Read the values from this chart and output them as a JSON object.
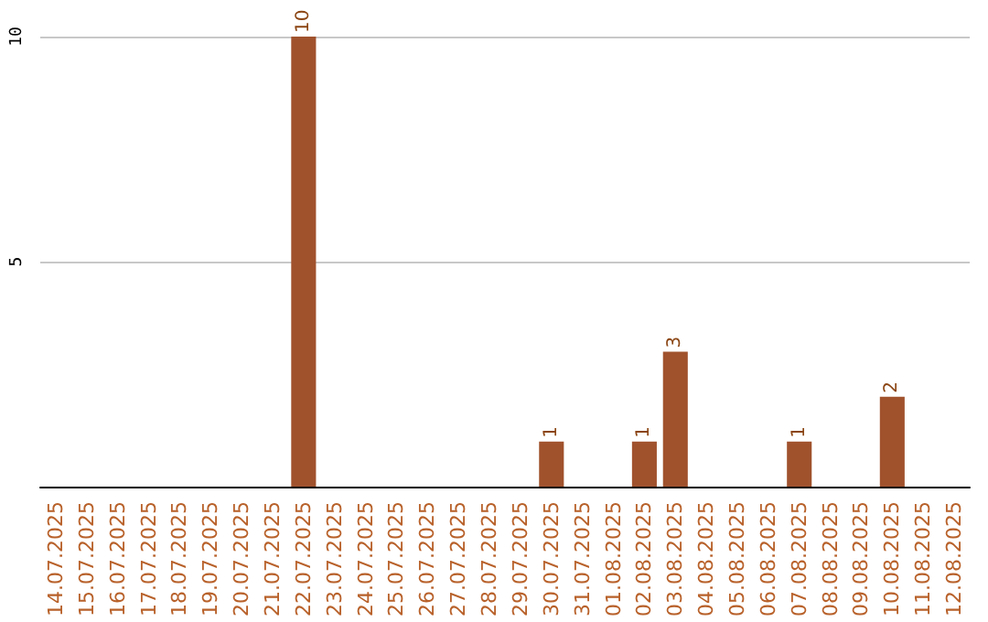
{
  "chart_data": {
    "type": "bar",
    "categories": [
      "14.07.2025",
      "15.07.2025",
      "16.07.2025",
      "17.07.2025",
      "18.07.2025",
      "19.07.2025",
      "20.07.2025",
      "21.07.2025",
      "22.07.2025",
      "23.07.2025",
      "24.07.2025",
      "25.07.2025",
      "26.07.2025",
      "27.07.2025",
      "28.07.2025",
      "29.07.2025",
      "30.07.2025",
      "31.07.2025",
      "01.08.2025",
      "02.08.2025",
      "03.08.2025",
      "04.08.2025",
      "05.08.2025",
      "06.08.2025",
      "07.08.2025",
      "08.08.2025",
      "09.08.2025",
      "10.08.2025",
      "11.08.2025",
      "12.08.2025"
    ],
    "values": [
      0,
      0,
      0,
      0,
      0,
      0,
      0,
      0,
      10,
      0,
      0,
      0,
      0,
      0,
      0,
      0,
      1,
      0,
      0,
      1,
      3,
      0,
      0,
      0,
      1,
      0,
      0,
      2,
      0,
      0
    ],
    "value_labels": [
      null,
      null,
      null,
      null,
      null,
      null,
      null,
      null,
      "10",
      null,
      null,
      null,
      null,
      null,
      null,
      null,
      "1",
      null,
      null,
      "1",
      "3",
      null,
      null,
      null,
      "1",
      null,
      null,
      "2",
      null,
      null
    ],
    "color": "#a0522d",
    "ylim": [
      0,
      10
    ],
    "yticks": [
      {
        "value": 0,
        "label": null
      },
      5,
      10
    ],
    "grid": "y"
  }
}
